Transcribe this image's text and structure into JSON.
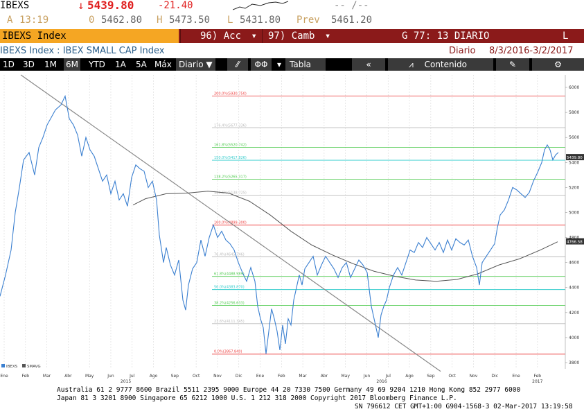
{
  "quote": {
    "ticker": "IBEXS",
    "arrow": "↓",
    "last": "5439.80",
    "change": "-21.40",
    "dash": "-- /--",
    "a_label": "A",
    "time": "13:19",
    "o_label": "0",
    "open": "5462.80",
    "h_label": "H",
    "high": "5473.50",
    "l_label": "L",
    "low": "5431.80",
    "prev_label": "Prev",
    "prev": "5461.20"
  },
  "command_bar": {
    "ticker_field": "IBEXS Index",
    "acc_label": "96) Acc",
    "camb_label": "97) Camb",
    "title": "G 77: 13 DIARIO",
    "mode": "L"
  },
  "header": {
    "security": "IBEXS Index : IBEX SMALL CAP Index",
    "period_label": "Diario",
    "date_range": "8/3/2016-3/2/2017"
  },
  "toolbar": {
    "ranges": [
      "1D",
      "3D",
      "1M",
      "6M",
      "YTD",
      "1A",
      "5A",
      "Máx"
    ],
    "selected_range": "6M",
    "frequency": "Diario",
    "table_label": "Tabla",
    "content_label": "Contenido"
  },
  "chart_data": {
    "type": "line",
    "x_ticks": [
      "Ene",
      "Feb",
      "Mar",
      "Abr",
      "May",
      "Jun",
      "Jul",
      "Ago",
      "Sep",
      "Oct",
      "Nov",
      "Dic",
      "Ene",
      "Feb",
      "Mar",
      "Abr",
      "May",
      "Jun",
      "Jul",
      "Ago",
      "Sep",
      "Oct",
      "Nov",
      "Dic",
      "Ene",
      "Feb"
    ],
    "year_labels": [
      "2015",
      "2016",
      "2017"
    ],
    "ylim": [
      3750,
      6100
    ],
    "y_ticks": [
      3800,
      4000,
      4200,
      4400,
      4600,
      4800,
      5000,
      5200,
      5400,
      5600,
      5800,
      6000
    ],
    "legend": [
      "IBEXS",
      "SMAVG"
    ],
    "last_label": "5439.80",
    "sma_label": "4766.58",
    "fib_levels": [
      {
        "label": "200.0%(5930.750)",
        "value": 5930.75,
        "color": "#ee4444"
      },
      {
        "label": "176.4%(5677.336)",
        "value": 5677.34,
        "color": "#bbbbbb"
      },
      {
        "label": "161.8%(5520.742)",
        "value": 5520.74,
        "color": "#55cc55"
      },
      {
        "label": "150.0%(5417.826)",
        "value": 5417.83,
        "color": "#33cccc"
      },
      {
        "label": "138.2%(5265.317)",
        "value": 5265.32,
        "color": "#55cc55"
      },
      {
        "label": "123.6%(5138.725)",
        "value": 5138.73,
        "color": "#bbbbbb"
      },
      {
        "label": "100.0%(4899.300)",
        "value": 4899.3,
        "color": "#ee4444"
      },
      {
        "label": "76.4%(4645.746)",
        "value": 4645.75,
        "color": "#bbbbbb"
      },
      {
        "label": "61.8%(4488.989)",
        "value": 4488.99,
        "color": "#55cc55"
      },
      {
        "label": "50.0%(4383.870)",
        "value": 4383.87,
        "color": "#33cccc"
      },
      {
        "label": "38.2%(4256.633)",
        "value": 4256.63,
        "color": "#55cc55"
      },
      {
        "label": "23.6%(4111.345)",
        "value": 4111.35,
        "color": "#bbbbbb"
      },
      {
        "label": "0.0%(3867.840)",
        "value": 3867.84,
        "color": "#ee4444"
      }
    ],
    "price_points": [
      [
        0,
        4330
      ],
      [
        8,
        4500
      ],
      [
        16,
        4700
      ],
      [
        22,
        5000
      ],
      [
        28,
        5200
      ],
      [
        34,
        5420
      ],
      [
        42,
        5480
      ],
      [
        50,
        5300
      ],
      [
        56,
        5520
      ],
      [
        62,
        5600
      ],
      [
        68,
        5700
      ],
      [
        74,
        5760
      ],
      [
        80,
        5820
      ],
      [
        88,
        5860
      ],
      [
        94,
        5930
      ],
      [
        100,
        5750
      ],
      [
        106,
        5700
      ],
      [
        112,
        5620
      ],
      [
        118,
        5450
      ],
      [
        124,
        5600
      ],
      [
        130,
        5500
      ],
      [
        136,
        5450
      ],
      [
        142,
        5350
      ],
      [
        148,
        5250
      ],
      [
        154,
        5300
      ],
      [
        160,
        5150
      ],
      [
        166,
        5250
      ],
      [
        172,
        5100
      ],
      [
        178,
        5150
      ],
      [
        184,
        5050
      ],
      [
        190,
        5280
      ],
      [
        196,
        5380
      ],
      [
        202,
        5350
      ],
      [
        208,
        5330
      ],
      [
        214,
        5200
      ],
      [
        220,
        5250
      ],
      [
        226,
        5100
      ],
      [
        230,
        4820
      ],
      [
        236,
        4600
      ],
      [
        240,
        4720
      ],
      [
        246,
        4580
      ],
      [
        252,
        4500
      ],
      [
        258,
        4620
      ],
      [
        264,
        4300
      ],
      [
        268,
        4220
      ],
      [
        272,
        4420
      ],
      [
        278,
        4550
      ],
      [
        284,
        4600
      ],
      [
        290,
        4780
      ],
      [
        296,
        4650
      ],
      [
        302,
        4800
      ],
      [
        308,
        4900
      ],
      [
        314,
        4800
      ],
      [
        320,
        4850
      ],
      [
        326,
        4780
      ],
      [
        332,
        4750
      ],
      [
        338,
        4700
      ],
      [
        344,
        4600
      ],
      [
        350,
        4520
      ],
      [
        356,
        4450
      ],
      [
        362,
        4560
      ],
      [
        368,
        4450
      ],
      [
        372,
        4250
      ],
      [
        376,
        4150
      ],
      [
        380,
        4080
      ],
      [
        384,
        3870
      ],
      [
        388,
        4050
      ],
      [
        392,
        4230
      ],
      [
        396,
        4150
      ],
      [
        400,
        4050
      ],
      [
        404,
        3900
      ],
      [
        408,
        4100
      ],
      [
        412,
        3950
      ],
      [
        416,
        4150
      ],
      [
        420,
        4100
      ],
      [
        424,
        4300
      ],
      [
        428,
        4400
      ],
      [
        432,
        4500
      ],
      [
        436,
        4420
      ],
      [
        440,
        4550
      ],
      [
        446,
        4600
      ],
      [
        452,
        4650
      ],
      [
        458,
        4500
      ],
      [
        464,
        4580
      ],
      [
        470,
        4650
      ],
      [
        476,
        4600
      ],
      [
        482,
        4550
      ],
      [
        488,
        4480
      ],
      [
        494,
        4560
      ],
      [
        500,
        4600
      ],
      [
        506,
        4480
      ],
      [
        512,
        4550
      ],
      [
        518,
        4620
      ],
      [
        524,
        4580
      ],
      [
        530,
        4520
      ],
      [
        536,
        4250
      ],
      [
        542,
        4100
      ],
      [
        546,
        4000
      ],
      [
        550,
        4180
      ],
      [
        554,
        4250
      ],
      [
        558,
        4300
      ],
      [
        562,
        4400
      ],
      [
        568,
        4500
      ],
      [
        574,
        4560
      ],
      [
        580,
        4500
      ],
      [
        586,
        4600
      ],
      [
        592,
        4700
      ],
      [
        598,
        4680
      ],
      [
        604,
        4760
      ],
      [
        610,
        4720
      ],
      [
        616,
        4800
      ],
      [
        622,
        4750
      ],
      [
        628,
        4700
      ],
      [
        634,
        4760
      ],
      [
        640,
        4680
      ],
      [
        646,
        4780
      ],
      [
        652,
        4700
      ],
      [
        658,
        4790
      ],
      [
        664,
        4760
      ],
      [
        670,
        4740
      ],
      [
        676,
        4780
      ],
      [
        682,
        4650
      ],
      [
        688,
        4560
      ],
      [
        692,
        4420
      ],
      [
        696,
        4600
      ],
      [
        702,
        4650
      ],
      [
        708,
        4700
      ],
      [
        714,
        4750
      ],
      [
        718,
        4880
      ],
      [
        722,
        4980
      ],
      [
        728,
        5020
      ],
      [
        734,
        5100
      ],
      [
        740,
        5200
      ],
      [
        746,
        5180
      ],
      [
        752,
        5150
      ],
      [
        758,
        5120
      ],
      [
        764,
        5160
      ],
      [
        770,
        5250
      ],
      [
        776,
        5320
      ],
      [
        782,
        5400
      ],
      [
        786,
        5500
      ],
      [
        790,
        5540
      ],
      [
        794,
        5500
      ],
      [
        798,
        5420
      ],
      [
        802,
        5460
      ],
      [
        806,
        5480
      ]
    ],
    "sma_points": [
      [
        192,
        5060
      ],
      [
        210,
        5110
      ],
      [
        240,
        5150
      ],
      [
        270,
        5155
      ],
      [
        300,
        5170
      ],
      [
        330,
        5155
      ],
      [
        360,
        5090
      ],
      [
        390,
        4980
      ],
      [
        420,
        4850
      ],
      [
        450,
        4740
      ],
      [
        480,
        4660
      ],
      [
        510,
        4590
      ],
      [
        540,
        4530
      ],
      [
        570,
        4490
      ],
      [
        600,
        4460
      ],
      [
        630,
        4450
      ],
      [
        660,
        4465
      ],
      [
        690,
        4510
      ],
      [
        720,
        4580
      ],
      [
        750,
        4630
      ],
      [
        780,
        4700
      ],
      [
        805,
        4766
      ]
    ],
    "trendline": [
      [
        30,
        6100
      ],
      [
        636,
        3730
      ]
    ]
  },
  "footer": {
    "line1": "Australia 61 2 9777 8600 Brazil 5511 2395 9000 Europe 44 20 7330 7500 Germany 49 69 9204 1210 Hong Kong 852 2977 6000",
    "line2": "Japan 81 3 3201 8900          Singapore 65 6212 1000          U.S. 1 212 318 2000          Copyright 2017 Bloomberg Finance L.P.",
    "line3": "SN 796612 CET  GMT+1:00 G904-1568-3 02-Mar-2017 13:19:58"
  }
}
